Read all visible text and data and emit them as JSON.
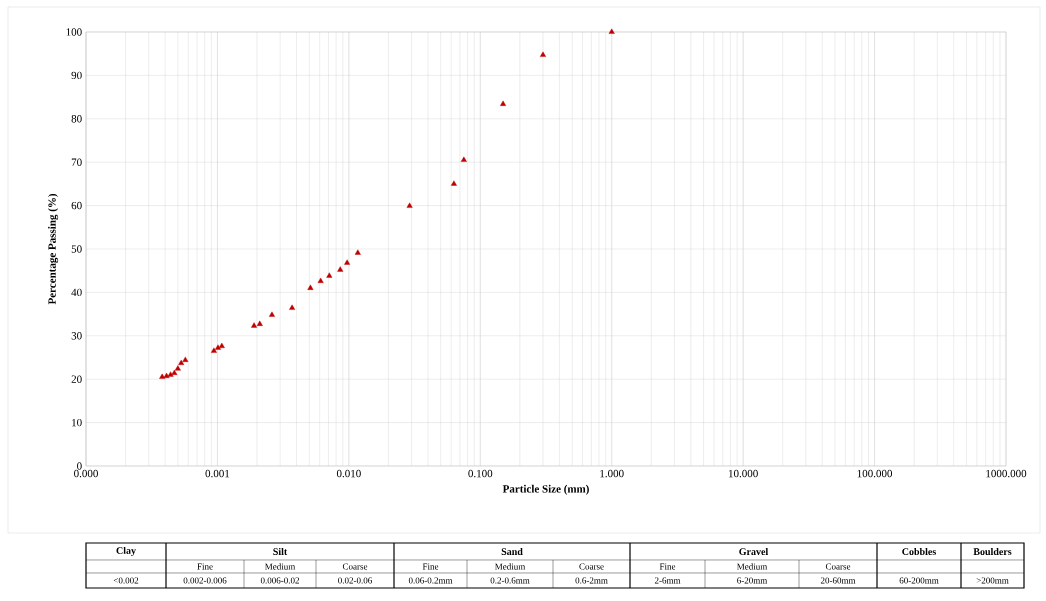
{
  "chart_data": {
    "type": "scatter",
    "xlabel": "Particle Size (mm)",
    "ylabel": "Percentage Passing (%)",
    "log": "x",
    "grid": true,
    "marker": "triangle",
    "xlim": [
      0.0001,
      1000
    ],
    "ylim": [
      0,
      100
    ],
    "xticks": [
      {
        "value": 0.0001,
        "label": "0.000"
      },
      {
        "value": 0.001,
        "label": "0.001"
      },
      {
        "value": 0.01,
        "label": "0.010"
      },
      {
        "value": 0.1,
        "label": "0.100"
      },
      {
        "value": 1,
        "label": "1.000"
      },
      {
        "value": 10,
        "label": "10.000"
      },
      {
        "value": 100,
        "label": "100.000"
      },
      {
        "value": 1000,
        "label": "1000.000"
      }
    ],
    "yticks": [
      0,
      10,
      20,
      30,
      40,
      50,
      60,
      70,
      80,
      90,
      100
    ],
    "series": [
      {
        "color": "#c00000",
        "x": [
          0.00038,
          0.00041,
          0.00044,
          0.00047,
          0.0005,
          0.00053,
          0.00057,
          0.00094,
          0.00101,
          0.00108,
          0.0019,
          0.0021,
          0.0026,
          0.0037,
          0.0051,
          0.0061,
          0.0071,
          0.0086,
          0.0097,
          0.0117,
          0.029,
          0.063,
          0.075,
          0.149,
          0.3,
          1.0
        ],
        "values": [
          20.5,
          20.7,
          21.0,
          21.4,
          22.4,
          23.7,
          24.4,
          26.5,
          27.2,
          27.6,
          32.3,
          32.7,
          34.8,
          36.4,
          41.0,
          42.6,
          43.8,
          45.2,
          46.8,
          49.1,
          59.9,
          65.0,
          70.5,
          83.4,
          94.7,
          100
        ]
      }
    ],
    "annotations": [
      "Clay",
      "Silt",
      "Sand",
      "Gravel",
      "Cobbles",
      "Boulders",
      "Fine",
      "Medium",
      "Coarse",
      "Fine",
      "Medium",
      "Coarse",
      "Fine",
      "Medium",
      "Coarse",
      "<0.002",
      "0.002-0.006",
      "0.006-0.02",
      "0.02-0.06",
      "0.06-0.2mm",
      "0.2-0.6mm",
      "0.6-2mm",
      "2-6mm",
      "6-20mm",
      "20-60mm",
      "60-200mm",
      ">200mm"
    ]
  }
}
